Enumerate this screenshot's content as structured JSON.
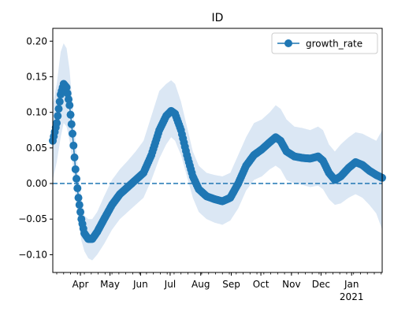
{
  "chart_data": {
    "type": "line",
    "title": "ID",
    "xlabel": "",
    "ylabel": "",
    "x_start": "2020-03-04",
    "x_end": "2021-02-01",
    "xlim": [
      "2020-03-04",
      "2021-02-01"
    ],
    "ylim": [
      -0.125,
      0.218
    ],
    "y_ticks": [
      -0.1,
      -0.05,
      0.0,
      0.05,
      0.1,
      0.15,
      0.2
    ],
    "y_tick_labels": [
      "−0.10",
      "−0.05",
      "0.00",
      "0.05",
      "0.10",
      "0.15",
      "0.20"
    ],
    "x_ticks": [
      {
        "date": "2020-04-01",
        "label": "Apr"
      },
      {
        "date": "2020-05-01",
        "label": "May"
      },
      {
        "date": "2020-06-01",
        "label": "Jun"
      },
      {
        "date": "2020-07-01",
        "label": "Jul"
      },
      {
        "date": "2020-08-01",
        "label": "Aug"
      },
      {
        "date": "2020-09-01",
        "label": "Sep"
      },
      {
        "date": "2020-10-01",
        "label": "Oct"
      },
      {
        "date": "2020-11-01",
        "label": "Nov"
      },
      {
        "date": "2020-12-01",
        "label": "Dec"
      },
      {
        "date": "2021-01-01",
        "label": "Jan",
        "sublabel": "2021"
      }
    ],
    "reference_line": {
      "y": 0.0,
      "style": "dashed"
    },
    "legend": {
      "position": "top-right",
      "entries": [
        "growth_rate"
      ]
    },
    "grid": false,
    "colors": {
      "series": "#1f77b4",
      "band": "#dbe7f4"
    },
    "series": [
      {
        "name": "growth_rate",
        "marker": "circle",
        "knots": [
          [
            "2020-03-04",
            0.06,
            0.005,
            0.11
          ],
          [
            "2020-03-08",
            0.085,
            0.03,
            0.14
          ],
          [
            "2020-03-12",
            0.125,
            0.065,
            0.185
          ],
          [
            "2020-03-15",
            0.14,
            0.085,
            0.197
          ],
          [
            "2020-03-18",
            0.135,
            0.08,
            0.19
          ],
          [
            "2020-03-21",
            0.11,
            0.06,
            0.16
          ],
          [
            "2020-03-24",
            0.07,
            0.03,
            0.11
          ],
          [
            "2020-03-27",
            0.02,
            -0.015,
            0.06
          ],
          [
            "2020-03-30",
            -0.02,
            -0.055,
            0.01
          ],
          [
            "2020-04-02",
            -0.05,
            -0.08,
            -0.02
          ],
          [
            "2020-04-05",
            -0.07,
            -0.095,
            -0.045
          ],
          [
            "2020-04-09",
            -0.078,
            -0.105,
            -0.05
          ],
          [
            "2020-04-13",
            -0.078,
            -0.108,
            -0.05
          ],
          [
            "2020-04-18",
            -0.068,
            -0.1,
            -0.04
          ],
          [
            "2020-04-25",
            -0.05,
            -0.085,
            -0.018
          ],
          [
            "2020-05-03",
            -0.03,
            -0.065,
            0.005
          ],
          [
            "2020-05-11",
            -0.015,
            -0.05,
            0.02
          ],
          [
            "2020-05-19",
            -0.005,
            -0.04,
            0.032
          ],
          [
            "2020-05-27",
            0.005,
            -0.03,
            0.045
          ],
          [
            "2020-06-04",
            0.015,
            -0.02,
            0.06
          ],
          [
            "2020-06-12",
            0.04,
            0.005,
            0.095
          ],
          [
            "2020-06-20",
            0.075,
            0.035,
            0.13
          ],
          [
            "2020-06-27",
            0.095,
            0.055,
            0.14
          ],
          [
            "2020-07-02",
            0.102,
            0.065,
            0.145
          ],
          [
            "2020-07-06",
            0.098,
            0.06,
            0.14
          ],
          [
            "2020-07-12",
            0.075,
            0.04,
            0.115
          ],
          [
            "2020-07-18",
            0.04,
            0.01,
            0.08
          ],
          [
            "2020-07-24",
            0.01,
            -0.02,
            0.045
          ],
          [
            "2020-07-30",
            -0.008,
            -0.04,
            0.025
          ],
          [
            "2020-08-07",
            -0.018,
            -0.05,
            0.015
          ],
          [
            "2020-08-15",
            -0.022,
            -0.055,
            0.012
          ],
          [
            "2020-08-23",
            -0.025,
            -0.058,
            0.01
          ],
          [
            "2020-08-31",
            -0.02,
            -0.052,
            0.015
          ],
          [
            "2020-09-08",
            0.0,
            -0.035,
            0.04
          ],
          [
            "2020-09-16",
            0.025,
            -0.01,
            0.065
          ],
          [
            "2020-09-24",
            0.04,
            0.005,
            0.085
          ],
          [
            "2020-10-02",
            0.048,
            0.01,
            0.09
          ],
          [
            "2020-10-10",
            0.058,
            0.02,
            0.1
          ],
          [
            "2020-10-16",
            0.065,
            0.025,
            0.11
          ],
          [
            "2020-10-21",
            0.06,
            0.02,
            0.105
          ],
          [
            "2020-10-27",
            0.045,
            0.005,
            0.09
          ],
          [
            "2020-11-04",
            0.038,
            0.0,
            0.08
          ],
          [
            "2020-11-12",
            0.036,
            -0.002,
            0.078
          ],
          [
            "2020-11-20",
            0.035,
            -0.005,
            0.075
          ],
          [
            "2020-11-28",
            0.038,
            -0.003,
            0.08
          ],
          [
            "2020-12-03",
            0.032,
            -0.008,
            0.075
          ],
          [
            "2020-12-09",
            0.015,
            -0.022,
            0.055
          ],
          [
            "2020-12-15",
            0.005,
            -0.03,
            0.045
          ],
          [
            "2020-12-21",
            0.01,
            -0.028,
            0.055
          ],
          [
            "2020-12-29",
            0.022,
            -0.02,
            0.065
          ],
          [
            "2021-01-05",
            0.03,
            -0.015,
            0.072
          ],
          [
            "2021-01-12",
            0.026,
            -0.02,
            0.07
          ],
          [
            "2021-01-19",
            0.018,
            -0.03,
            0.065
          ],
          [
            "2021-01-26",
            0.012,
            -0.042,
            0.06
          ],
          [
            "2021-02-01",
            0.008,
            -0.065,
            0.075
          ]
        ]
      }
    ]
  }
}
